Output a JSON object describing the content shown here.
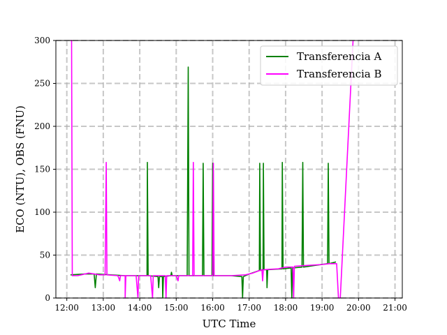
{
  "chart_data": {
    "type": "line",
    "title": "",
    "xlabel": "UTC Time",
    "ylabel": "ECO (NTU), OBS (FNU)",
    "xlim": [
      11.7,
      21.2
    ],
    "ylim": [
      0,
      300
    ],
    "x_ticks": [
      12,
      13,
      14,
      15,
      16,
      17,
      18,
      19,
      20,
      21
    ],
    "x_tick_labels": [
      "12:00",
      "13:00",
      "14:00",
      "15:00",
      "16:00",
      "17:00",
      "18:00",
      "19:00",
      "20:00",
      "21:00"
    ],
    "y_ticks": [
      0,
      50,
      100,
      150,
      200,
      250,
      300
    ],
    "y_tick_labels": [
      "0",
      "50",
      "100",
      "150",
      "200",
      "250",
      "300"
    ],
    "grid": true,
    "legend_position": "top-right",
    "series": [
      {
        "name": "Transferencia A",
        "color": "#008000",
        "points": [
          [
            12.1,
            27
          ],
          [
            12.5,
            28
          ],
          [
            12.75,
            28
          ],
          [
            12.78,
            12
          ],
          [
            12.81,
            28
          ],
          [
            13.2,
            27
          ],
          [
            13.6,
            26
          ],
          [
            14.0,
            26
          ],
          [
            14.2,
            26
          ],
          [
            14.21,
            158
          ],
          [
            14.23,
            26
          ],
          [
            14.5,
            25
          ],
          [
            14.52,
            12
          ],
          [
            14.54,
            25
          ],
          [
            14.62,
            25
          ],
          [
            14.63,
            0
          ],
          [
            14.65,
            25
          ],
          [
            14.85,
            26
          ],
          [
            14.87,
            30
          ],
          [
            14.89,
            26
          ],
          [
            15.3,
            26
          ],
          [
            15.33,
            269
          ],
          [
            15.35,
            26
          ],
          [
            15.72,
            26
          ],
          [
            15.74,
            157
          ],
          [
            15.76,
            26
          ],
          [
            15.98,
            26
          ],
          [
            16.0,
            157
          ],
          [
            16.02,
            26
          ],
          [
            16.5,
            26
          ],
          [
            16.8,
            25
          ],
          [
            16.82,
            0
          ],
          [
            16.84,
            25
          ],
          [
            17.0,
            28
          ],
          [
            17.28,
            32
          ],
          [
            17.29,
            157
          ],
          [
            17.31,
            32
          ],
          [
            17.38,
            33
          ],
          [
            17.39,
            157
          ],
          [
            17.41,
            33
          ],
          [
            17.48,
            33
          ],
          [
            17.49,
            12
          ],
          [
            17.51,
            33
          ],
          [
            17.9,
            34
          ],
          [
            17.91,
            158
          ],
          [
            17.93,
            34
          ],
          [
            18.15,
            35
          ],
          [
            18.17,
            0
          ],
          [
            18.19,
            35
          ],
          [
            18.45,
            36
          ],
          [
            18.47,
            158
          ],
          [
            18.49,
            36
          ],
          [
            18.8,
            38
          ],
          [
            19.15,
            40
          ],
          [
            19.17,
            157
          ],
          [
            19.19,
            40
          ],
          [
            19.38,
            42
          ]
        ]
      },
      {
        "name": "Transferencia B",
        "color": "#ff00ff",
        "points": [
          [
            12.1,
            300
          ],
          [
            12.13,
            300
          ],
          [
            12.15,
            26
          ],
          [
            12.3,
            26
          ],
          [
            12.6,
            29
          ],
          [
            12.9,
            27
          ],
          [
            13.05,
            27
          ],
          [
            13.08,
            158
          ],
          [
            13.1,
            27
          ],
          [
            13.4,
            26
          ],
          [
            13.45,
            20
          ],
          [
            13.47,
            26
          ],
          [
            13.6,
            26
          ],
          [
            13.6,
            0
          ],
          [
            13.62,
            26
          ],
          [
            13.9,
            26
          ],
          [
            13.95,
            0
          ],
          [
            13.97,
            26
          ],
          [
            14.3,
            26
          ],
          [
            14.35,
            0
          ],
          [
            14.37,
            26
          ],
          [
            14.7,
            26
          ],
          [
            14.72,
            0
          ],
          [
            14.74,
            26
          ],
          [
            15.0,
            26
          ],
          [
            15.05,
            20
          ],
          [
            15.07,
            26
          ],
          [
            15.45,
            26
          ],
          [
            15.47,
            158
          ],
          [
            15.49,
            26
          ],
          [
            16.0,
            26
          ],
          [
            16.02,
            157
          ],
          [
            16.04,
            26
          ],
          [
            16.5,
            26
          ],
          [
            16.9,
            27
          ],
          [
            17.1,
            29
          ],
          [
            17.35,
            33
          ],
          [
            17.37,
            20
          ],
          [
            17.39,
            33
          ],
          [
            17.8,
            34
          ],
          [
            18.0,
            36
          ],
          [
            18.2,
            36
          ],
          [
            18.22,
            0
          ],
          [
            18.24,
            37
          ],
          [
            18.6,
            38
          ],
          [
            19.0,
            39
          ],
          [
            19.2,
            40
          ],
          [
            19.4,
            40
          ],
          [
            19.45,
            0
          ],
          [
            19.5,
            0
          ],
          [
            19.85,
            300
          ]
        ]
      }
    ]
  }
}
